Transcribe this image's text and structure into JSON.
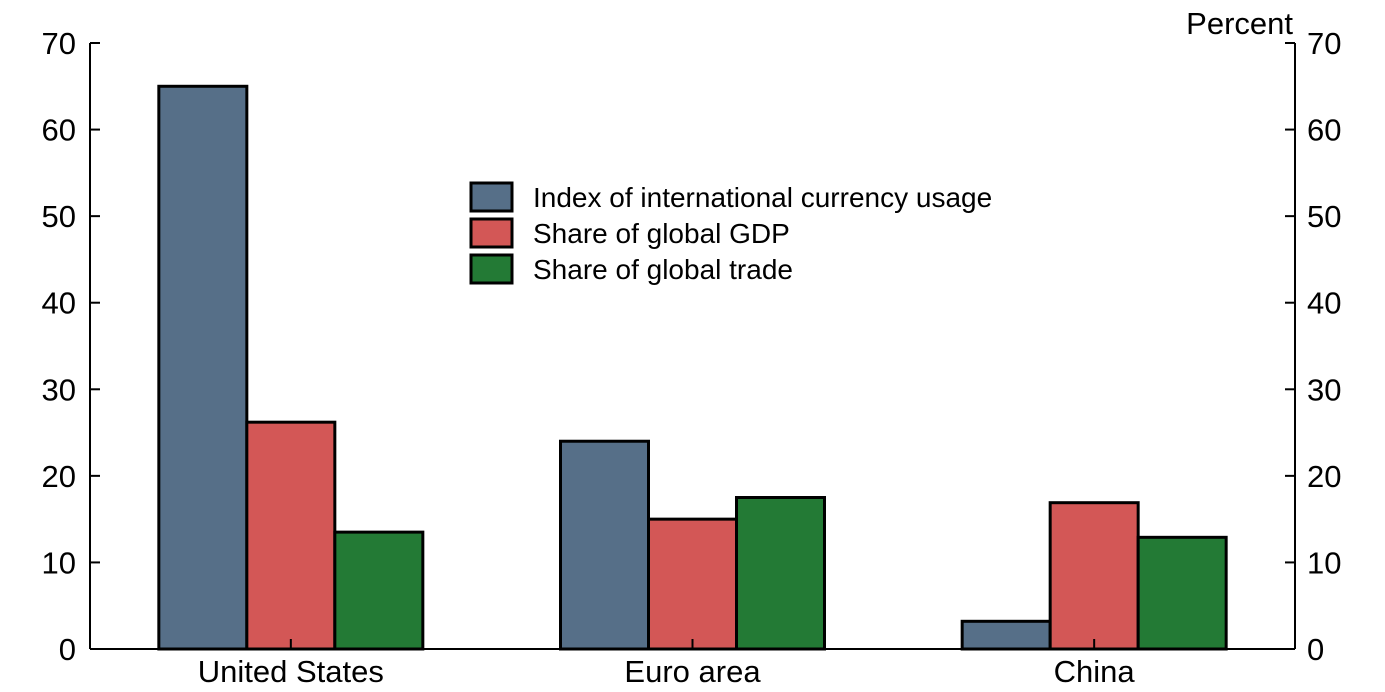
{
  "chart_data": {
    "type": "bar",
    "unit_label": "Percent",
    "categories": [
      "United States",
      "Euro area",
      "China"
    ],
    "series": [
      {
        "name": "Index of international currency usage",
        "color": "#566f88",
        "values": [
          65.0,
          24.0,
          3.2
        ]
      },
      {
        "name": "Share of global GDP",
        "color": "#d35756",
        "values": [
          26.2,
          15.0,
          16.9
        ]
      },
      {
        "name": "Share of global trade",
        "color": "#237a35",
        "values": [
          13.5,
          17.5,
          12.9
        ]
      }
    ],
    "ylim": [
      0,
      70
    ],
    "yticks": [
      0,
      10,
      20,
      30,
      40,
      50,
      60,
      70
    ],
    "y_axis_sides": [
      "left",
      "right"
    ],
    "legend_position": "top-center",
    "grid": false
  }
}
